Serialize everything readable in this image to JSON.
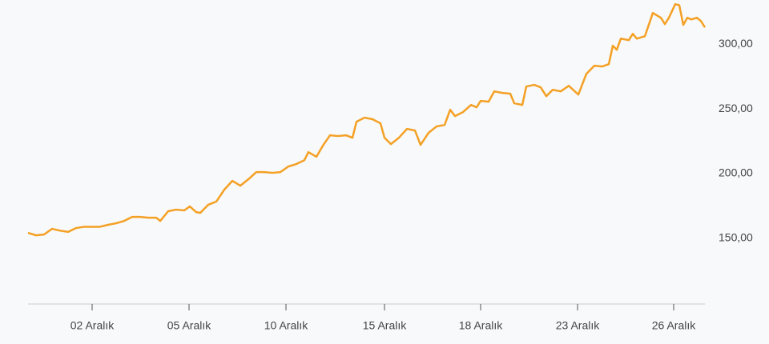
{
  "chart_data": {
    "type": "line",
    "x": [
      0,
      2,
      4,
      6,
      8,
      10,
      12,
      14,
      16,
      18,
      20,
      22,
      24,
      26,
      28,
      30,
      32,
      33,
      35,
      37,
      39,
      40.4,
      42,
      43,
      45,
      47,
      49,
      51,
      53,
      55,
      57,
      59,
      61,
      63,
      65,
      67,
      69,
      70,
      72,
      73.6,
      75.4,
      77.4,
      79.4,
      81,
      82,
      84,
      86,
      88,
      89,
      90.6,
      92.6,
      94.6,
      96.6,
      98,
      100,
      102,
      104,
      105.4,
      106.6,
      108.6,
      110.6,
      112,
      113,
      115,
      116.4,
      118.4,
      120.4,
      121.4,
      123.4,
      124.4,
      126.4,
      128,
      129.4,
      131,
      133,
      135,
      137.4,
      139.4,
      141.4,
      143.4,
      145,
      146,
      147,
      148,
      150,
      151,
      152,
      154,
      156,
      158,
      159,
      160,
      161.6,
      162.6,
      163.6,
      164.6,
      165.6,
      167,
      168,
      169
    ],
    "series": [
      {
        "color": "#f4a024",
        "values": [
          154.3,
          152.4,
          153,
          157.4,
          156,
          155,
          158,
          159,
          159,
          159,
          160.5,
          161.7,
          163.5,
          166.6,
          166.6,
          166,
          166,
          163.5,
          171,
          172.2,
          171.6,
          174.7,
          170.3,
          169.7,
          176,
          178.4,
          187.6,
          194.4,
          190.7,
          195.6,
          201.2,
          201.2,
          200.6,
          201.2,
          205.5,
          207.4,
          210.4,
          216.6,
          213,
          221.5,
          229.6,
          229,
          229.6,
          227.7,
          240,
          243.2,
          242,
          238.8,
          227.7,
          222.8,
          227.7,
          234.5,
          233.3,
          222.2,
          231.5,
          236.4,
          237.6,
          249.3,
          244.4,
          247.5,
          253,
          251.2,
          256.1,
          255.5,
          263.5,
          262.3,
          261.7,
          254.3,
          253,
          267.2,
          268.5,
          266.6,
          259.8,
          264.7,
          263.5,
          267.8,
          261,
          277,
          283.3,
          282.7,
          284.5,
          298.7,
          295.6,
          304.2,
          303,
          307.9,
          304.2,
          306,
          324,
          320.3,
          315.4,
          320.3,
          330.8,
          330,
          314.8,
          320.3,
          319,
          320.3,
          317.8,
          312.9
        ]
      }
    ],
    "xlim": [
      0,
      169
    ],
    "xticks": [
      {
        "value": 16,
        "label": "02 Aralık"
      },
      {
        "value": 40.2,
        "label": "05 Aralık"
      },
      {
        "value": 64.4,
        "label": "10 Aralık"
      },
      {
        "value": 89,
        "label": "15 Aralık"
      },
      {
        "value": 113,
        "label": "18 Aralık"
      },
      {
        "value": 137.2,
        "label": "23 Aralık"
      },
      {
        "value": 161.2,
        "label": "26 Aralık"
      }
    ],
    "ylim": [
      100,
      334
    ],
    "yticks": [
      {
        "value": 150,
        "label": "150,00"
      },
      {
        "value": 200,
        "label": "200,00"
      },
      {
        "value": 250,
        "label": "250,00"
      },
      {
        "value": 300,
        "label": "300,00"
      }
    ]
  }
}
